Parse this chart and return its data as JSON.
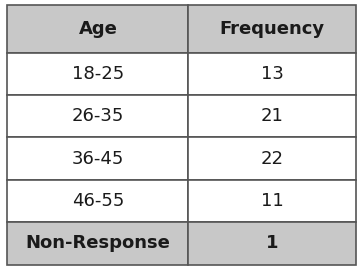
{
  "col_headers": [
    "Age",
    "Frequency"
  ],
  "rows": [
    [
      "18-25",
      "13"
    ],
    [
      "26-35",
      "21"
    ],
    [
      "36-45",
      "22"
    ],
    [
      "46-55",
      "11"
    ],
    [
      "Non-Response",
      "1"
    ]
  ],
  "header_bg": "#c8c8c8",
  "row_bg": "#ffffff",
  "last_row_bg": "#c8c8c8",
  "text_color": "#1a1a1a",
  "header_fontsize": 13,
  "cell_fontsize": 13,
  "fig_bg": "#ffffff",
  "border_color": "#555555",
  "figw": 3.63,
  "figh": 2.7,
  "dpi": 100
}
